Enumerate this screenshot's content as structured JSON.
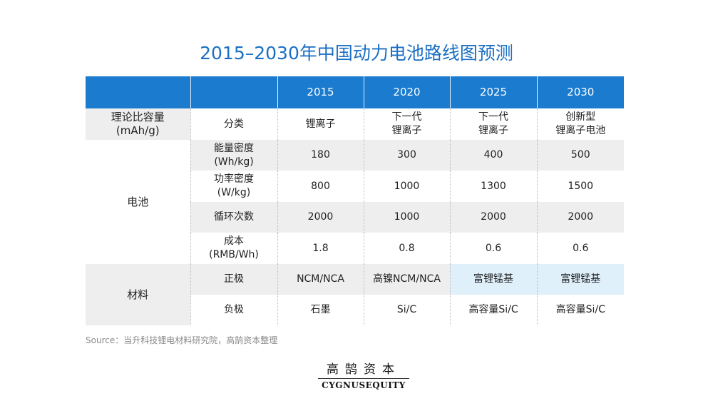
{
  "title": "2015–2030年中国动力电池路线图预测",
  "header": {
    "blank1": "",
    "blank2": "",
    "years": [
      "2015",
      "2020",
      "2025",
      "2030"
    ]
  },
  "rows": {
    "capacity": {
      "group": "理论比容量\n(mAh/g)",
      "label": "分类",
      "values": [
        "锂离子",
        "下一代\n锂离子",
        "下一代\n锂离子",
        "创新型\n锂离子电池"
      ]
    },
    "battery_group": "电池",
    "energy": {
      "label": "能量密度\n(Wh/kg)",
      "values": [
        "180",
        "300",
        "400",
        "500"
      ]
    },
    "power": {
      "label": "功率密度\n(W/kg)",
      "values": [
        "800",
        "1000",
        "1300",
        "1500"
      ]
    },
    "cycles": {
      "label": "循环次数",
      "values": [
        "2000",
        "1000",
        "2000",
        "2000"
      ]
    },
    "cost": {
      "label": "成本\n(RMB/Wh)",
      "values": [
        "1.8",
        "0.8",
        "0.6",
        "0.6"
      ]
    },
    "material_group": "材料",
    "cathode": {
      "label": "正极",
      "values": [
        "NCM/NCA",
        "高镍NCM/NCA",
        "富锂锰基",
        "富锂锰基"
      ]
    },
    "anode": {
      "label": "负极",
      "values": [
        "石墨",
        "Si/C",
        "高容量Si/C",
        "高容量Si/C"
      ]
    }
  },
  "source": "Source：当升科技锂电材料研究院，高鹄资本整理",
  "logo": {
    "cn": "高鹄资本",
    "en": "CYGNUSEQUITY"
  },
  "colors": {
    "accent": "#1a7bcf",
    "title": "#1a6fc4",
    "highlight": "#dff0fb",
    "shade": "#eeeeee"
  }
}
